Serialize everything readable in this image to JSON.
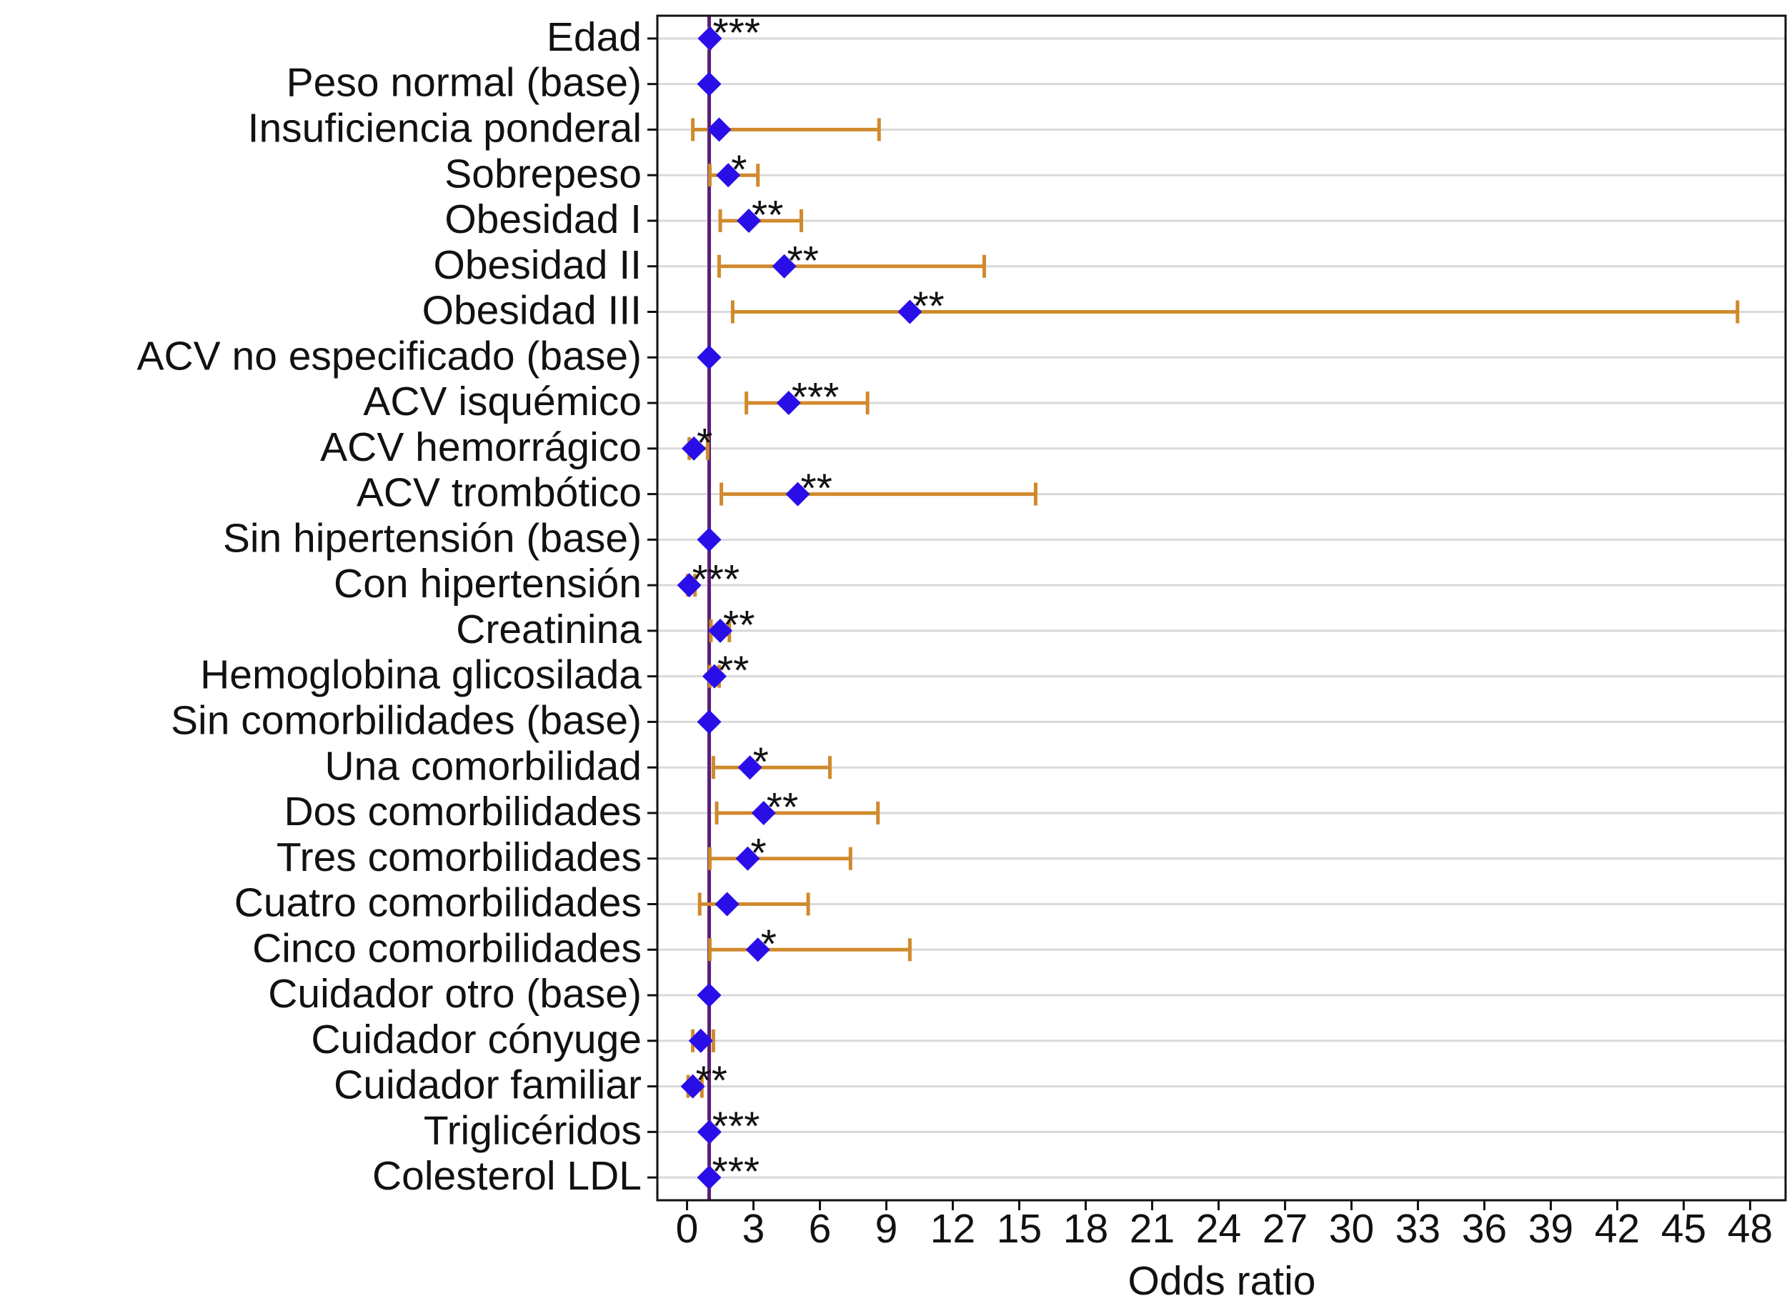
{
  "chart_data": {
    "type": "forest",
    "xlabel": "Odds ratio",
    "categories": [
      "Edad",
      "Peso normal (base)",
      "Insuficiencia ponderal",
      "Sobrepeso",
      "Obesidad I",
      "Obesidad II",
      "Obesidad III",
      "ACV no especificado  (base)",
      "ACV isquémico",
      "ACV hemorrágico",
      "ACV trombótico",
      "Sin hipertensión (base)",
      "Con hipertensión",
      "Creatinina",
      "Hemoglobina glicosilada",
      "Sin comorbilidades (base)",
      "Una comorbilidad",
      "Dos comorbilidades",
      "Tres comorbilidades",
      "Cuatro comorbilidades",
      "Cinco comorbilidades",
      "Cuidador otro (base)",
      "Cuidador cónyuge",
      "Cuidador familiar",
      "Triglicéridos",
      "Colesterol LDL"
    ],
    "values": [
      1.03,
      1,
      1.45,
      1.86,
      2.79,
      4.39,
      10.06,
      1,
      4.59,
      0.31,
      5.0,
      1,
      0.1,
      1.5,
      1.24,
      1,
      2.84,
      3.46,
      2.74,
      1.81,
      3.2,
      1,
      0.62,
      0.26,
      1.01,
      1.0
    ],
    "lower": [
      1.01,
      null,
      0.26,
      1.03,
      1.5,
      1.45,
      2.06,
      null,
      2.68,
      0.1,
      1.55,
      null,
      0.03,
      1.08,
      1.03,
      null,
      1.19,
      1.34,
      1.03,
      0.57,
      1.03,
      null,
      0.26,
      0.05,
      1.0,
      0.99
    ],
    "upper": [
      1.05,
      null,
      8.67,
      3.2,
      5.16,
      13.42,
      47.43,
      null,
      8.15,
      0.93,
      15.74,
      null,
      0.36,
      1.91,
      1.45,
      null,
      6.45,
      8.62,
      7.38,
      5.47,
      10.06,
      null,
      1.19,
      0.67,
      1.03,
      1.02
    ],
    "significance": [
      "***",
      null,
      null,
      "*",
      "**",
      "**",
      "**",
      null,
      "***",
      "*",
      "**",
      null,
      "***",
      "**",
      "**",
      null,
      "*",
      "**",
      "*",
      null,
      "*",
      null,
      null,
      "**",
      "***",
      "***"
    ],
    "color": "#2a0ee8",
    "ci_color": "#d08a2c",
    "reference_line": 1,
    "reference_color": "#5a1f78",
    "xlim": [
      -1.34,
      49.6
    ],
    "xticks": [
      0,
      3,
      6,
      9,
      12,
      15,
      18,
      21,
      24,
      27,
      30,
      33,
      36,
      39,
      42,
      45,
      48
    ],
    "grid": true
  }
}
